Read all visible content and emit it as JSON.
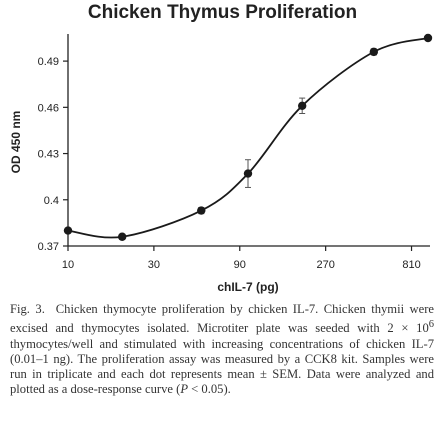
{
  "chart_data": {
    "type": "line",
    "title": "Chicken Thymus Proliferation",
    "xlabel": "chIL-7 (pg)",
    "ylabel": "OD 450 nm",
    "x_scale": "log",
    "x_ticks": [
      10,
      30,
      90,
      270,
      810
    ],
    "y_ticks": [
      0.37,
      0.4,
      0.43,
      0.46,
      0.49
    ],
    "ylim": [
      0.37,
      0.505
    ],
    "grid": false,
    "markers": "filled-circle",
    "color": "#1a1a1a",
    "points": [
      {
        "x": 10,
        "y": 0.38,
        "err": 0.001
      },
      {
        "x": 20,
        "y": 0.376,
        "err": 0.001
      },
      {
        "x": 55,
        "y": 0.393,
        "err": 0.002
      },
      {
        "x": 100,
        "y": 0.417,
        "err": 0.009
      },
      {
        "x": 200,
        "y": 0.461,
        "err": 0.005
      },
      {
        "x": 500,
        "y": 0.496,
        "err": 0.002
      },
      {
        "x": 1000,
        "y": 0.505,
        "err": 0.001
      }
    ]
  },
  "caption": {
    "fig_label": "Fig. 3.",
    "text_1": "Chicken thymocyte proliferation by chicken IL-7. Chicken thymii were excised and thymocytes isolated. Microtiter plate was seeded with 2 × 10",
    "superscript": "6",
    "text_2": " thymocytes/well and stimulated with increasing concentrations of chicken IL-7 (0.01–1 ng). The proliferation assay was measured by a CCK8 kit. Samples were run in triplicate and each dot represents mean ± SEM. Data were analyzed and plotted as a dose-response curve (",
    "p_symbol": "P",
    "text_3": " < 0.05)."
  }
}
